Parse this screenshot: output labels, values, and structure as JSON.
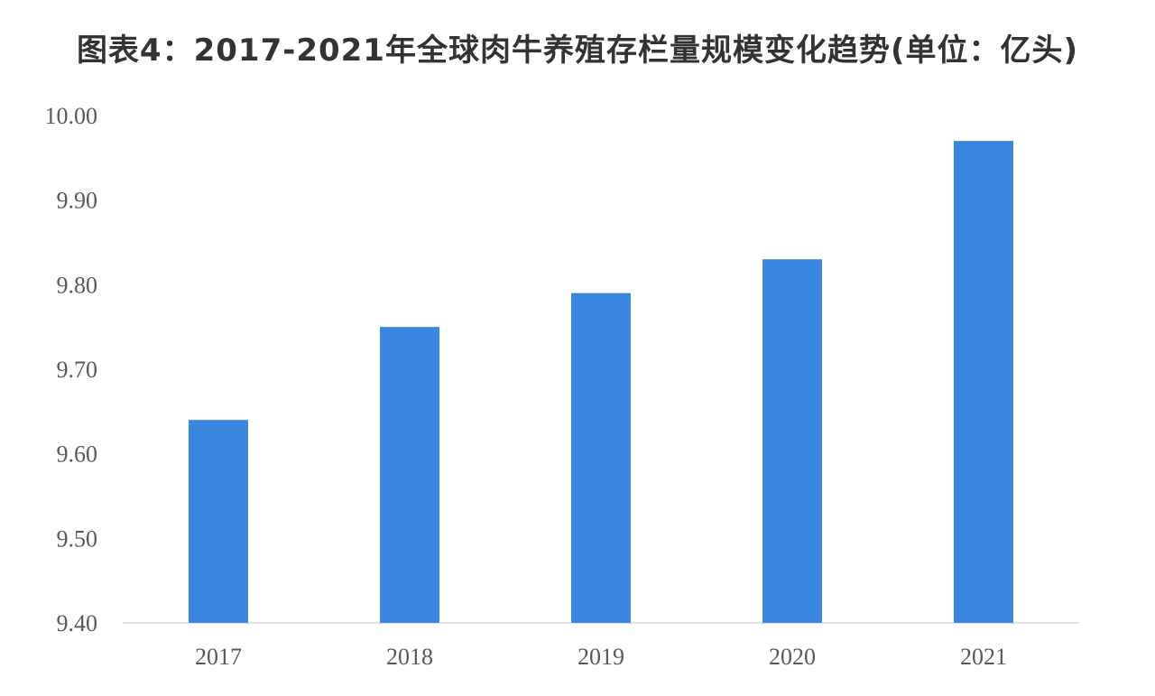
{
  "chart_data": {
    "type": "bar",
    "title": "图表4：2017-2021年全球肉牛养殖存栏量规模变化趋势(单位：亿头)",
    "categories": [
      "2017",
      "2018",
      "2019",
      "2020",
      "2021"
    ],
    "values": [
      9.64,
      9.75,
      9.79,
      9.83,
      9.97
    ],
    "ylim": [
      9.4,
      10.0
    ],
    "yticks": [
      "9.40",
      "9.50",
      "9.60",
      "9.70",
      "9.80",
      "9.90",
      "10.00"
    ],
    "xlabel": "",
    "ylabel": "",
    "grid": false,
    "legend": "none",
    "colors": {
      "bar": "#3B86E0",
      "axis": "#D9D9D9",
      "text": "#595959"
    }
  }
}
